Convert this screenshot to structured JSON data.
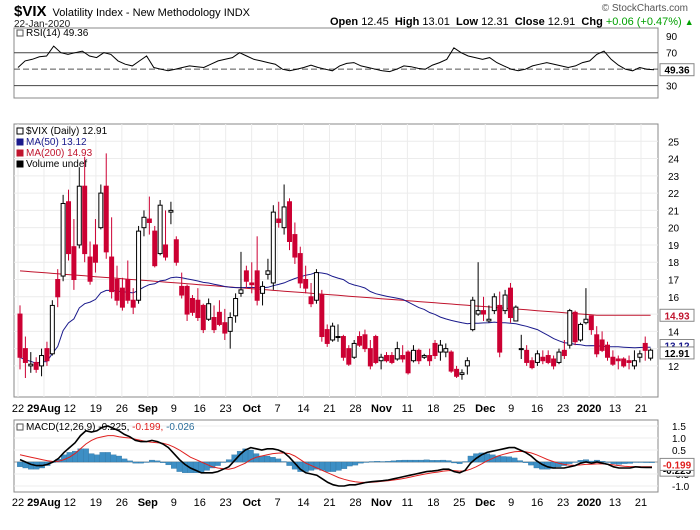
{
  "header": {
    "symbol": "$VIX",
    "name": "Volatility Index - New Methodology  INDX",
    "date": "22-Jan-2020",
    "watermark": "© StockCharts.com",
    "open_label": "Open",
    "open": "12.45",
    "high_label": "High",
    "high": "13.01",
    "low_label": "Low",
    "low": "12.31",
    "close_label": "Close",
    "close": "12.91",
    "chg_label": "Chg",
    "chg": "+0.06 (+0.47%)",
    "chg_arrow": "▲"
  },
  "colors": {
    "up": "#000000",
    "down": "#cc0033",
    "ma50": "#1a1a8c",
    "ma200": "#c0142d",
    "rsi": "#000000",
    "macd": "#000000",
    "signal": "#e0201f",
    "hist": "#3d8fc5"
  },
  "chart_data": [
    {
      "type": "line",
      "title": "RSI(14) 49.36",
      "ylim": [
        15,
        100
      ],
      "yticks": [
        90,
        70,
        50,
        30
      ],
      "levels": [
        70,
        50,
        30
      ],
      "last_label": "49.36",
      "series": [
        {
          "name": "RSI(14)",
          "values": [
            52,
            60,
            62,
            65,
            66,
            78,
            70,
            68,
            70,
            72,
            66,
            64,
            70,
            68,
            60,
            56,
            54,
            60,
            66,
            52,
            50,
            48,
            50,
            52,
            54,
            53,
            52,
            56,
            60,
            62,
            64,
            70,
            66,
            62,
            60,
            58,
            56,
            50,
            48,
            50,
            52,
            55,
            52,
            50,
            48,
            54,
            57,
            58,
            54,
            52,
            50,
            48,
            47,
            50,
            54,
            53,
            51,
            50,
            55,
            58,
            62,
            76,
            70,
            66,
            64,
            62,
            64,
            58,
            54,
            50,
            48,
            50,
            54,
            56,
            58,
            56,
            54,
            52,
            54,
            58,
            60,
            68,
            72,
            62,
            55,
            50,
            48,
            52,
            50,
            49.36
          ]
        }
      ]
    },
    {
      "type": "candlestick",
      "title": "$VIX (Daily) 12.91",
      "legend": [
        "$VIX (Daily) 12.91",
        "MA(50) 13.12",
        "MA(200) 14.93",
        "Volume undef"
      ],
      "ylim": [
        10.2,
        26
      ],
      "yticks": [
        25,
        24,
        23,
        22,
        21,
        20,
        19,
        18,
        17,
        16,
        15,
        14,
        13,
        12
      ],
      "last_labels": {
        "ma200": "14.93",
        "ma50": "13.12",
        "close": "12.91"
      },
      "x_labels": [
        "22",
        "29Aug",
        "12",
        "19",
        "26",
        "Sep",
        "9",
        "16",
        "23",
        "Oct",
        "7",
        "14",
        "21",
        "28",
        "Nov",
        "11",
        "18",
        "25",
        "Dec",
        "9",
        "16",
        "23",
        "2020",
        "13",
        "21"
      ],
      "ohlc": [
        [
          15,
          15.5,
          11.8,
          12.5
        ],
        [
          13,
          13.7,
          11.3,
          12.2
        ],
        [
          12,
          12.8,
          11.6,
          12.1
        ],
        [
          12.2,
          12.5,
          11.6,
          11.8
        ],
        [
          12,
          13,
          11.4,
          12.6
        ],
        [
          13,
          13.4,
          12,
          12.3
        ],
        [
          12.7,
          15.8,
          12.6,
          15.5
        ],
        [
          17,
          17.6,
          15.4,
          16
        ],
        [
          17.2,
          21.9,
          16.9,
          21.4
        ],
        [
          21.5,
          22.2,
          18.1,
          18.5
        ],
        [
          18.9,
          20.5,
          16.4,
          17
        ],
        [
          19,
          23.5,
          18.8,
          22.4
        ],
        [
          22.4,
          24.1,
          18,
          18.5
        ],
        [
          18.3,
          19.2,
          16.7,
          16.9
        ],
        [
          19,
          20.5,
          17.4,
          18
        ],
        [
          20,
          22.5,
          19.9,
          22
        ],
        [
          22.4,
          24.3,
          18.2,
          18.6
        ],
        [
          18.3,
          20.6,
          15.9,
          16.3
        ],
        [
          17,
          17.8,
          15.5,
          15.8
        ],
        [
          16.5,
          17.1,
          15.2,
          15.4
        ],
        [
          17,
          18.1,
          15.6,
          15.8
        ],
        [
          15.8,
          16.5,
          15,
          15.4
        ],
        [
          15.8,
          20.1,
          15.6,
          19.8
        ],
        [
          20,
          21,
          19.5,
          20.6
        ],
        [
          20.5,
          21.8,
          19.6,
          20.3
        ],
        [
          19.8,
          20.1,
          17.7,
          17.8
        ],
        [
          18.5,
          21.6,
          18.4,
          21.3
        ],
        [
          19,
          21,
          18.1,
          18.3
        ],
        [
          20.9,
          21.5,
          20.2,
          21
        ],
        [
          19.3,
          19.5,
          17.8,
          18
        ],
        [
          16.6,
          17.4,
          15.9,
          16.1
        ],
        [
          16.6,
          16.7,
          14.6,
          15
        ],
        [
          15.9,
          16.1,
          14.9,
          15.1
        ],
        [
          15.8,
          16.5,
          14.6,
          14.8
        ],
        [
          15.5,
          15.6,
          13.9,
          14.1
        ],
        [
          14.7,
          15.9,
          14.6,
          15.6
        ],
        [
          14.8,
          15.5,
          13.9,
          14.1
        ],
        [
          15.1,
          15.8,
          14.3,
          14.4
        ],
        [
          14.5,
          15.3,
          13.5,
          13.9
        ],
        [
          14,
          15.1,
          13,
          14.8
        ],
        [
          14.9,
          16.2,
          14.5,
          15.9
        ],
        [
          16.2,
          18.6,
          16,
          16.4
        ],
        [
          17.5,
          17.8,
          16.5,
          16.9
        ],
        [
          16.8,
          18,
          16.2,
          16.7
        ],
        [
          17.5,
          19.5,
          15.5,
          15.8
        ],
        [
          16.2,
          16.9,
          15.5,
          16.6
        ],
        [
          17.3,
          18.2,
          17,
          17.5
        ],
        [
          16.8,
          21.3,
          16.4,
          20.9
        ],
        [
          20.5,
          21.5,
          20,
          20.3
        ],
        [
          20,
          22.5,
          19.6,
          21.2
        ],
        [
          21.5,
          21.7,
          18.7,
          19.2
        ],
        [
          19.6,
          20.3,
          17.9,
          18.3
        ],
        [
          18.5,
          18.9,
          16.5,
          16.8
        ],
        [
          17,
          17.8,
          16.2,
          16.5
        ],
        [
          16,
          16.8,
          15.4,
          15.6
        ],
        [
          15.8,
          17.6,
          15.6,
          17.4
        ],
        [
          16.1,
          16.4,
          13.4,
          13.7
        ],
        [
          14.1,
          14.4,
          13.1,
          13.3
        ],
        [
          13.5,
          14.5,
          13.4,
          14.3
        ],
        [
          13.7,
          14.4,
          13.4,
          13.7
        ],
        [
          13.7,
          13.8,
          12.3,
          12.5
        ],
        [
          13,
          13.2,
          12,
          12.1
        ],
        [
          12.5,
          13.5,
          12.4,
          13.3
        ],
        [
          13.7,
          14,
          13.1,
          13.2
        ],
        [
          13.8,
          14.1,
          12.8,
          13
        ],
        [
          13,
          13.5,
          11.8,
          12
        ],
        [
          13.7,
          13.8,
          12.1,
          12.2
        ],
        [
          12.3,
          12.7,
          11.8,
          12.5
        ],
        [
          12.6,
          12.8,
          12.2,
          12.3
        ],
        [
          12.6,
          12.8,
          12.1,
          12.2
        ],
        [
          12.4,
          13.4,
          12.3,
          13
        ],
        [
          12.6,
          13.2,
          12.2,
          12.4
        ],
        [
          12.8,
          12.9,
          11.5,
          11.6
        ],
        [
          12.3,
          13.2,
          12.2,
          12.9
        ],
        [
          12.9,
          13,
          12.1,
          12.3
        ],
        [
          12.5,
          12.7,
          12.4,
          12.6
        ],
        [
          12.6,
          13,
          12,
          12.3
        ],
        [
          13.3,
          13.5,
          12.4,
          12.6
        ],
        [
          12.8,
          13.5,
          12.3,
          13.2
        ],
        [
          12.8,
          13.3,
          12.5,
          13
        ],
        [
          12.8,
          12.9,
          11.6,
          11.7
        ],
        [
          11.8,
          12,
          11.3,
          11.4
        ],
        [
          11.5,
          11.8,
          11.2,
          11.6
        ],
        [
          12,
          12.5,
          11.5,
          12.3
        ],
        [
          14.1,
          16,
          14,
          15.8
        ],
        [
          15,
          18,
          14.9,
          15.2
        ],
        [
          15.2,
          16,
          14.6,
          15
        ],
        [
          14.6,
          15.5,
          14.5,
          14.7
        ],
        [
          15.2,
          16.2,
          15,
          16
        ],
        [
          15.5,
          16.3,
          12.5,
          12.8
        ],
        [
          15.2,
          16.4,
          15,
          16.1
        ],
        [
          16.5,
          16.8,
          14.5,
          14.8
        ],
        [
          14.6,
          15.5,
          14.6,
          15.4
        ],
        [
          13,
          13.8,
          12.4,
          13
        ],
        [
          12.9,
          13.2,
          12,
          12.2
        ],
        [
          12.3,
          12.5,
          11.8,
          11.9
        ],
        [
          12.2,
          12.9,
          12,
          12.7
        ],
        [
          12.5,
          12.9,
          12.1,
          12.3
        ],
        [
          12.6,
          12.9,
          12.1,
          12.2
        ],
        [
          12.4,
          12.6,
          11.8,
          12
        ],
        [
          12.2,
          13,
          12.1,
          12.8
        ],
        [
          12.9,
          13.5,
          12.4,
          12.6
        ],
        [
          13.2,
          15.3,
          13,
          15.2
        ],
        [
          15.1,
          15.2,
          13.2,
          13.4
        ],
        [
          13.5,
          14.5,
          13.4,
          14.4
        ],
        [
          14.5,
          16.5,
          14.4,
          14.7
        ],
        [
          14.9,
          14.9,
          13.8,
          14.1
        ],
        [
          13.8,
          14.3,
          12.5,
          12.7
        ],
        [
          13.5,
          14,
          12.8,
          12.9
        ],
        [
          13.2,
          13.4,
          12.3,
          12.5
        ],
        [
          12.5,
          12.9,
          12,
          12.1
        ],
        [
          12.4,
          12.6,
          11.8,
          12.3
        ],
        [
          12.4,
          12.5,
          11.9,
          12
        ],
        [
          12.3,
          12.6,
          11.8,
          12.2
        ],
        [
          12,
          12.9,
          11.8,
          12.3
        ],
        [
          12.5,
          12.9,
          12.2,
          12.7
        ],
        [
          13.3,
          13.7,
          12.3,
          12.9
        ],
        [
          12.45,
          13.01,
          12.31,
          12.91
        ]
      ]
    },
    {
      "type": "bar+line",
      "title": "MACD(12,26,9) -0.225, -0.199, -0.026",
      "title_parts": [
        "MACD(12,26,9)",
        "-0.225",
        "-0.199",
        "-0.026"
      ],
      "ylim": [
        -1.25,
        1.75
      ],
      "yticks": [
        "1.5",
        "1.0",
        "0.5",
        "-0.5",
        "-1.0"
      ],
      "last_labels": {
        "macd": "-0.225",
        "signal": "-0.199"
      },
      "x_labels": [
        "22",
        "29Aug",
        "12",
        "19",
        "26",
        "Sep",
        "9",
        "16",
        "23",
        "Oct",
        "7",
        "14",
        "21",
        "28",
        "Nov",
        "11",
        "18",
        "25",
        "Dec",
        "9",
        "16",
        "23",
        "2020",
        "13",
        "21"
      ],
      "macd": [
        0.1,
        0.0,
        -0.1,
        -0.15,
        -0.15,
        -0.1,
        0,
        0.15,
        0.4,
        0.6,
        0.8,
        1.1,
        1.3,
        1.25,
        1.3,
        1.45,
        1.5,
        1.4,
        1.3,
        1.15,
        1.05,
        0.9,
        0.85,
        0.85,
        0.9,
        0.85,
        0.75,
        0.6,
        0.35,
        0.1,
        -0.1,
        -0.25,
        -0.35,
        -0.45,
        -0.45,
        -0.45,
        -0.4,
        -0.3,
        -0.2,
        0.05,
        0.3,
        0.5,
        0.6,
        0.55,
        0.5,
        0.55,
        0.55,
        0.5,
        0.4,
        0.2,
        -0.05,
        -0.3,
        -0.45,
        -0.5,
        -0.55,
        -0.7,
        -0.85,
        -0.95,
        -1.0,
        -1.0,
        -0.95,
        -0.95,
        -0.9,
        -0.85,
        -0.82,
        -0.8,
        -0.78,
        -0.75,
        -0.7,
        -0.65,
        -0.6,
        -0.55,
        -0.5,
        -0.45,
        -0.4,
        -0.38,
        -0.35,
        -0.3,
        -0.3,
        -0.4,
        -0.45,
        -0.35,
        -0.05,
        0.15,
        0.3,
        0.4,
        0.45,
        0.5,
        0.55,
        0.6,
        0.6,
        0.5,
        0.4,
        0.25,
        0.05,
        -0.1,
        -0.2,
        -0.25,
        -0.25,
        -0.25,
        -0.2,
        -0.15,
        -0.05,
        0,
        -0.05,
        0,
        -0.05,
        -0.1,
        -0.2,
        -0.25,
        -0.25,
        -0.25,
        -0.2,
        -0.22,
        -0.225,
        -0.225
      ],
      "signal": [
        0.3,
        0.25,
        0.2,
        0.15,
        0.1,
        0.05,
        0.02,
        0.03,
        0.1,
        0.2,
        0.35,
        0.55,
        0.75,
        0.9,
        1.0,
        1.05,
        1.1,
        1.1,
        1.05,
        1.02,
        1.0,
        0.95,
        0.9,
        0.85,
        0.82,
        0.8,
        0.78,
        0.72,
        0.62,
        0.5,
        0.35,
        0.2,
        0.1,
        0.0,
        -0.1,
        -0.2,
        -0.25,
        -0.28,
        -0.3,
        -0.25,
        -0.15,
        -0.05,
        0.1,
        0.2,
        0.25,
        0.3,
        0.35,
        0.37,
        0.38,
        0.35,
        0.25,
        0.1,
        -0.05,
        -0.15,
        -0.25,
        -0.35,
        -0.45,
        -0.55,
        -0.65,
        -0.72,
        -0.78,
        -0.82,
        -0.85,
        -0.85,
        -0.84,
        -0.83,
        -0.8,
        -0.78,
        -0.75,
        -0.72,
        -0.68,
        -0.63,
        -0.58,
        -0.53,
        -0.49,
        -0.45,
        -0.42,
        -0.38,
        -0.36,
        -0.36,
        -0.38,
        -0.37,
        -0.3,
        -0.2,
        -0.08,
        0.05,
        0.15,
        0.25,
        0.32,
        0.38,
        0.43,
        0.44,
        0.43,
        0.38,
        0.3,
        0.2,
        0.1,
        0.02,
        -0.05,
        -0.1,
        -0.13,
        -0.14,
        -0.12,
        -0.1,
        -0.09,
        -0.08,
        -0.08,
        -0.09,
        -0.12,
        -0.15,
        -0.18,
        -0.19,
        -0.19,
        -0.2,
        -0.2,
        -0.199
      ]
    }
  ]
}
